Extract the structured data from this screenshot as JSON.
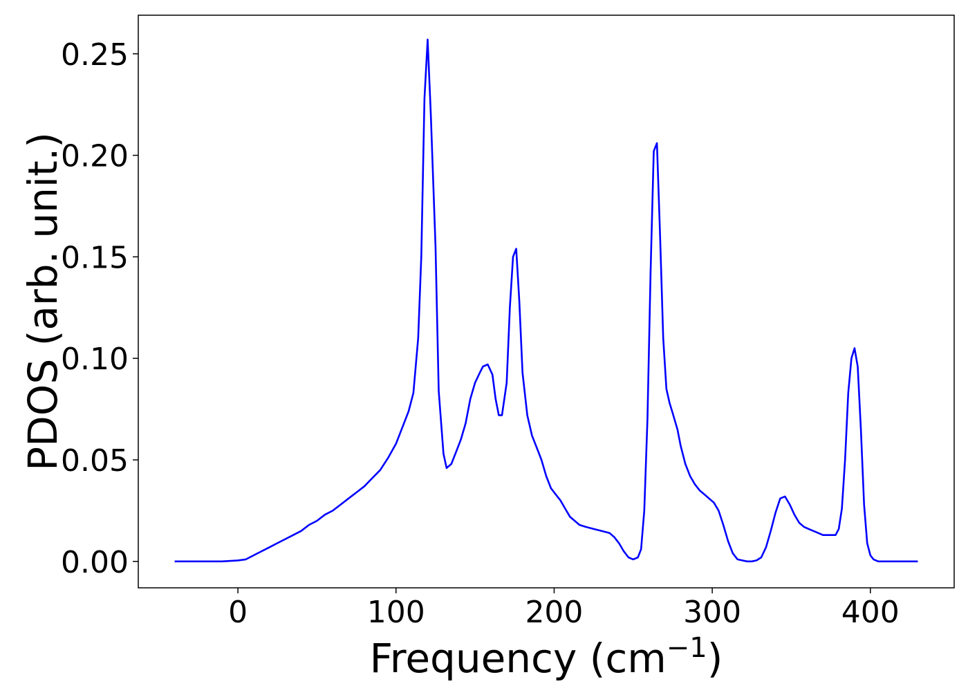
{
  "chart_data": {
    "type": "line",
    "title": "",
    "xlabel": "Frequency (cm",
    "xlabel_superscript": "−1",
    "xlabel_suffix": ")",
    "ylabel": "PDOS (arb. unit.)",
    "xlim": [
      -63,
      453
    ],
    "ylim": [
      -0.013,
      0.269
    ],
    "xticks": [
      0,
      100,
      200,
      300,
      400
    ],
    "xtick_labels": [
      "0",
      "100",
      "200",
      "300",
      "400"
    ],
    "yticks": [
      0.0,
      0.05,
      0.1,
      0.15,
      0.2,
      0.25
    ],
    "ytick_labels": [
      "0.00",
      "0.05",
      "0.10",
      "0.15",
      "0.20",
      "0.25"
    ],
    "grid": false,
    "legend": "none",
    "series": [
      {
        "color": "#0000ff",
        "x": [
          -40,
          -10,
          0,
          5,
          10,
          15,
          20,
          25,
          30,
          35,
          40,
          45,
          50,
          55,
          60,
          65,
          70,
          75,
          80,
          85,
          90,
          95,
          100,
          105,
          108,
          111,
          114,
          116,
          118,
          120,
          122,
          125,
          127,
          130,
          132,
          135,
          138,
          141,
          144,
          147,
          150,
          153,
          155,
          158,
          161,
          163,
          165,
          167,
          170,
          172,
          174,
          176,
          178,
          180,
          183,
          186,
          189,
          192,
          195,
          198,
          201,
          204,
          207,
          210,
          213,
          216,
          220,
          225,
          230,
          235,
          238,
          241,
          244,
          247,
          250,
          253,
          255,
          257,
          259,
          261,
          263,
          265,
          267,
          269,
          271,
          273,
          275,
          278,
          280,
          283,
          286,
          289,
          292,
          295,
          298,
          301,
          304,
          307,
          310,
          313,
          316,
          319,
          322,
          325,
          328,
          331,
          334,
          337,
          340,
          343,
          346,
          349,
          352,
          355,
          358,
          361,
          364,
          367,
          370,
          373,
          376,
          378,
          380,
          382,
          384,
          386,
          388,
          390,
          392,
          394,
          396,
          398,
          400,
          402,
          405,
          410,
          430
        ],
        "y": [
          0.0,
          0.0,
          0.0005,
          0.001,
          0.003,
          0.005,
          0.007,
          0.009,
          0.011,
          0.013,
          0.015,
          0.018,
          0.02,
          0.023,
          0.025,
          0.028,
          0.031,
          0.034,
          0.037,
          0.041,
          0.045,
          0.051,
          0.058,
          0.068,
          0.074,
          0.083,
          0.11,
          0.15,
          0.228,
          0.257,
          0.22,
          0.155,
          0.084,
          0.053,
          0.046,
          0.048,
          0.054,
          0.06,
          0.068,
          0.08,
          0.088,
          0.093,
          0.096,
          0.097,
          0.092,
          0.08,
          0.072,
          0.072,
          0.088,
          0.125,
          0.15,
          0.154,
          0.128,
          0.093,
          0.072,
          0.062,
          0.056,
          0.05,
          0.042,
          0.036,
          0.033,
          0.03,
          0.026,
          0.022,
          0.02,
          0.018,
          0.017,
          0.016,
          0.015,
          0.014,
          0.012,
          0.009,
          0.005,
          0.002,
          0.001,
          0.002,
          0.006,
          0.025,
          0.07,
          0.142,
          0.202,
          0.206,
          0.16,
          0.11,
          0.085,
          0.078,
          0.073,
          0.065,
          0.057,
          0.048,
          0.042,
          0.038,
          0.035,
          0.033,
          0.031,
          0.029,
          0.025,
          0.018,
          0.01,
          0.004,
          0.001,
          0.0005,
          0.0,
          0.0,
          0.0005,
          0.002,
          0.007,
          0.015,
          0.024,
          0.031,
          0.032,
          0.028,
          0.023,
          0.019,
          0.017,
          0.016,
          0.015,
          0.014,
          0.013,
          0.013,
          0.013,
          0.013,
          0.016,
          0.026,
          0.05,
          0.083,
          0.1,
          0.105,
          0.096,
          0.065,
          0.028,
          0.009,
          0.003,
          0.001,
          0.0,
          0.0,
          0.0
        ]
      }
    ]
  }
}
